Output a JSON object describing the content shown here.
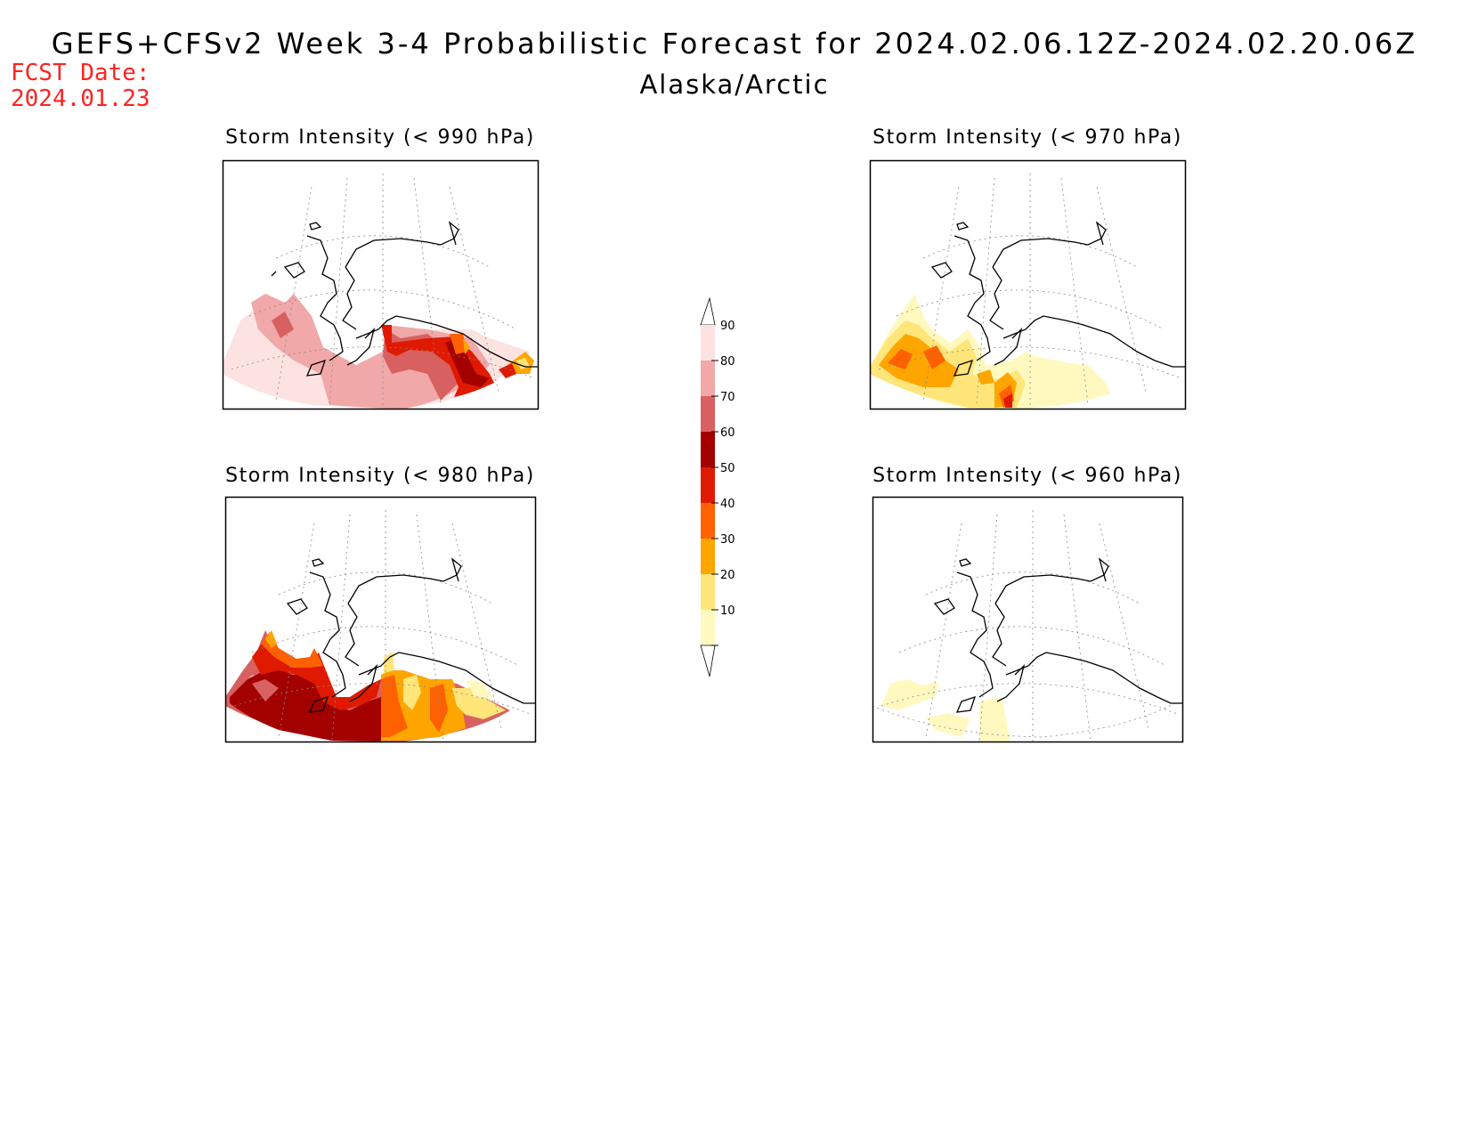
{
  "header": {
    "title": "GEFS+CFSv2 Week 3-4 Probabilistic Forecast for 2024.02.06.12Z-2024.02.20.06Z",
    "region": "Alaska/Arctic",
    "fcst_label": "FCST Date:",
    "fcst_date": "2024.01.23"
  },
  "panels": [
    {
      "id": "p990",
      "title": "Storm Intensity (< 990 hPa)"
    },
    {
      "id": "p970",
      "title": "Storm Intensity (< 970 hPa)"
    },
    {
      "id": "p980",
      "title": "Storm Intensity (< 980 hPa)"
    },
    {
      "id": "p960",
      "title": "Storm Intensity (< 960 hPa)"
    }
  ],
  "legend": {
    "levels": [
      "10",
      "20",
      "30",
      "40",
      "50",
      "60",
      "70",
      "80",
      "90"
    ],
    "colors": [
      "#fff9c0",
      "#ffe57a",
      "#ffa500",
      "#ff6000",
      "#e01a00",
      "#a30000",
      "#d96060",
      "#f0a8a8",
      "#fde2e2"
    ]
  }
}
